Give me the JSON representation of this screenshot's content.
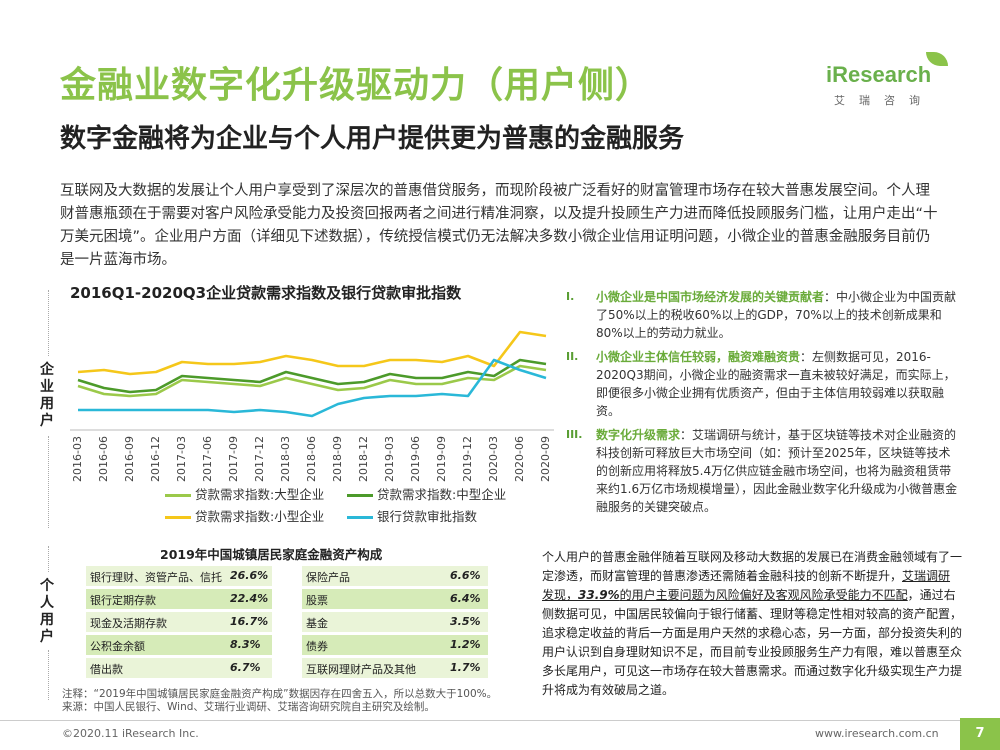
{
  "title": "金融业数字化升级驱动力（用户侧）",
  "subtitle": "数字金融将为企业与个人用户提供更为普惠的金融服务",
  "logo": {
    "word": "iResearch",
    "cn": "艾瑞咨询"
  },
  "intro": "互联网及大数据的发展让个人用户享受到了深层次的普惠借贷服务，而现阶段被广泛看好的财富管理市场存在较大普惠发展空间。个人理财普惠瓶颈在于需要对客户风险承受能力及投资回报两者之间进行精准洞察，以及提升投顾生产力进而降低投顾服务门槛，让用户走出“十万美元困境”。企业用户方面（详细见下述数据），传统授信模式仍无法解决多数小微企业信用证明问题，小微企业的普惠金融服务目前仍是一片蓝海市场。",
  "side_labels": {
    "enterprise": "企业用户",
    "personal": "个人用户"
  },
  "chart_data": {
    "type": "line",
    "title": "2016Q1-2020Q3企业贷款需求指数及银行贷款审批指数",
    "categories": [
      "2016-03",
      "2016-06",
      "2016-09",
      "2016-12",
      "2017-03",
      "2017-06",
      "2017-09",
      "2017-12",
      "2018-03",
      "2018-06",
      "2018-09",
      "2018-12",
      "2019-03",
      "2019-06",
      "2019-09",
      "2019-12",
      "2020-03",
      "2020-06",
      "2020-09"
    ],
    "series": [
      {
        "name": "贷款需求指数:大型企业",
        "color": "#9bc94a",
        "values": [
          59.5,
          57.5,
          57.0,
          57.5,
          61.0,
          60.5,
          60.0,
          59.5,
          61.5,
          60.0,
          58.5,
          59.0,
          61.0,
          60.0,
          60.0,
          61.5,
          61.0,
          64.5,
          63.5
        ]
      },
      {
        "name": "贷款需求指数:中型企业",
        "color": "#4c9a2a",
        "values": [
          61.0,
          59.0,
          58.0,
          58.5,
          62.0,
          61.5,
          61.0,
          60.5,
          63.0,
          61.5,
          60.0,
          60.5,
          62.5,
          61.5,
          61.5,
          63.0,
          62.0,
          66.0,
          65.0
        ]
      },
      {
        "name": "贷款需求指数:小型企业",
        "color": "#f5c71a",
        "values": [
          63.0,
          63.5,
          62.5,
          63.0,
          65.5,
          65.0,
          65.0,
          65.5,
          67.0,
          66.0,
          64.5,
          64.5,
          66.0,
          66.0,
          65.5,
          67.0,
          64.5,
          73.0,
          72.0
        ]
      },
      {
        "name": "银行贷款审批指数",
        "color": "#2ab8d8",
        "values": [
          53.5,
          53.5,
          53.5,
          53.5,
          53.5,
          53.5,
          53.0,
          53.5,
          53.0,
          52.0,
          55.0,
          56.5,
          57.0,
          57.0,
          57.5,
          57.0,
          66.0,
          63.5,
          61.5
        ]
      }
    ],
    "ylim": [
      49,
      76
    ]
  },
  "points": [
    {
      "num": "I.",
      "highlight": "小微企业是中国市场经济发展的关键贡献者",
      "text": "：中小微企业为中国贡献了50%以上的税收60%以上的GDP，70%以上的技术创新成果和80%以上的劳动力就业。"
    },
    {
      "num": "II.",
      "highlight": "小微企业主体信任较弱，融资难融资贵",
      "text": "：左侧数据可见，2016-2020Q3期间，小微企业的融资需求一直未被较好满足，而实际上，即便很多小微企业拥有优质资产，但由于主体信用较弱难以获取融资。"
    },
    {
      "num": "III.",
      "highlight": "数字化升级需求",
      "text": "：艾瑞调研与统计，基于区块链等技术对企业融资的科技创新可释放巨大市场空间（如：预计至2025年，区块链等技术的创新应用将释放5.4万亿供应链金融市场空间，也将为融资租赁带来约1.6万亿市场规模增量），因此金融业数字化升级成为小微普惠金融服务的关键突破点。"
    }
  ],
  "table": {
    "title": "2019年中国城镇居民家庭金融资产构成",
    "left": [
      {
        "label": "银行理财、资管产品、信托",
        "value": "26.6%"
      },
      {
        "label": "银行定期存款",
        "value": "22.4%"
      },
      {
        "label": "现金及活期存款",
        "value": "16.7%"
      },
      {
        "label": "公积金余额",
        "value": "8.3%"
      },
      {
        "label": "借出款",
        "value": "6.7%"
      }
    ],
    "right": [
      {
        "label": "保险产品",
        "value": "6.6%"
      },
      {
        "label": "股票",
        "value": "6.4%"
      },
      {
        "label": "基金",
        "value": "3.5%"
      },
      {
        "label": "债券",
        "value": "1.2%"
      },
      {
        "label": "互联网理财产品及其他",
        "value": "1.7%"
      }
    ]
  },
  "notes": {
    "note1": "注释：“2019年中国城镇居民家庭金融资产构成”数据因存在四舍五入，所以总数大于100%。",
    "note2": "来源：中国人民银行、Wind、艾瑞行业调研、艾瑞咨询研究院自主研究及绘制。"
  },
  "personal_para": {
    "p1": "个人用户的普惠金融伴随着互联网及移动大数据的发展已在消费金融领域有了一定渗透，而财富管理的普惠渗透还需随着金融科技的创新不断提升，",
    "p2a": "艾瑞调研发现，",
    "p2b": "33.9%",
    "p2c": "的用户主要问题为风险偏好及客观风险承受能力不匹配",
    "p3": "，通过右侧数据可见，中国居民较偏向于银行储蓄、理财等稳定性相对较高的资产配置，追求稳定收益的背后一方面是用户天然的求稳心态，另一方面，部分投资失利的用户认识到自身理财知识不足，而目前专业投顾服务生产力有限，难以普惠至众多长尾用户，可见这一市场存在较大普惠需求。而通过数字化升级实现生产力提升将成为有效破局之道。"
  },
  "footer": {
    "left": "©2020.11 iResearch Inc.",
    "right": "www.iresearch.com.cn",
    "page": "7"
  }
}
